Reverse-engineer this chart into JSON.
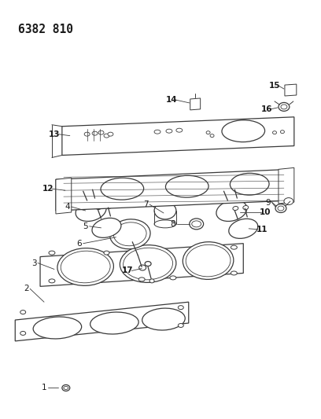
{
  "title": "6382 810",
  "bg_color": "#ffffff",
  "line_color": "#3a3a3a",
  "text_color": "#1a1a1a",
  "title_fontsize": 10.5,
  "label_fontsize": 7.5
}
